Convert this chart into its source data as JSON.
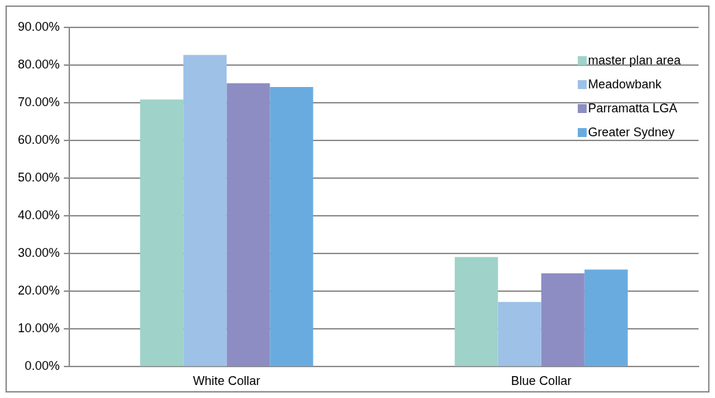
{
  "chart_data": {
    "type": "bar",
    "categories": [
      "White Collar",
      "Blue Collar"
    ],
    "series": [
      {
        "name": "master plan area",
        "color": "#9fd2c9",
        "values": [
          70.9,
          29.1
        ]
      },
      {
        "name": "Meadowbank",
        "color": "#9dc1e7",
        "values": [
          82.7,
          17.2
        ]
      },
      {
        "name": "Parramatta LGA",
        "color": "#8d8dc3",
        "values": [
          75.2,
          24.8
        ]
      },
      {
        "name": "Greater Sydney",
        "color": "#69abdf",
        "values": [
          74.2,
          25.8
        ]
      }
    ],
    "ylim": [
      0,
      90
    ],
    "yticks": [
      {
        "value": 0,
        "label": "0.00%"
      },
      {
        "value": 10,
        "label": "10.00%"
      },
      {
        "value": 20,
        "label": "20.00%"
      },
      {
        "value": 30,
        "label": "30.00%"
      },
      {
        "value": 40,
        "label": "40.00%"
      },
      {
        "value": 50,
        "label": "50.00%"
      },
      {
        "value": 60,
        "label": "60.00%"
      },
      {
        "value": 70,
        "label": "70.00%"
      },
      {
        "value": 80,
        "label": "80.00%"
      },
      {
        "value": 90,
        "label": "90.00%"
      }
    ],
    "grid": "y",
    "legend": "top right"
  }
}
